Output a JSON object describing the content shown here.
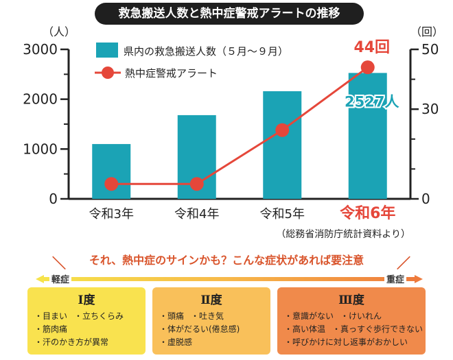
{
  "title": "救急搬送人数と熱中症警戒アラートの推移",
  "chart_data": {
    "type": "bar+line",
    "categories": [
      "令和3年",
      "令和4年",
      "令和5年",
      "令和6年"
    ],
    "highlight_category_index": 3,
    "series": [
      {
        "name": "県内の救急搬送人数（５月～９月）",
        "type": "bar",
        "axis": "left",
        "values": [
          1100,
          1680,
          2160,
          2527
        ]
      },
      {
        "name": "熱中症警戒アラート",
        "type": "line",
        "axis": "right",
        "values": [
          5,
          5,
          23,
          44
        ]
      }
    ],
    "left_axis": {
      "unit": "（人）",
      "ylim": [
        0,
        3000
      ],
      "ticks": [
        "0",
        "1000",
        "2000",
        "3000"
      ]
    },
    "right_axis": {
      "unit": "（回）",
      "ylim": [
        0,
        50
      ],
      "ticks": [
        "0",
        "30",
        "50"
      ]
    },
    "annotations": {
      "bar_callout": "2527人",
      "line_callout": "44回"
    },
    "source": "（総務省消防庁統計資料より）",
    "colors": {
      "bar": "#1ba3b5",
      "line": "#e5473a",
      "highlight": "#e5473a",
      "axis": "#222222"
    }
  },
  "warning": {
    "text": "それ、熱中症のサインかも？こんな症状があれば要注意",
    "left_mark": "＼",
    "right_mark": "／"
  },
  "severity": {
    "mild": "軽症",
    "severe": "重症"
  },
  "levels": [
    {
      "title": "Ⅰ度",
      "color": "#f9e24f",
      "lines": [
        [
          "・目まい",
          "・立ちくらみ"
        ],
        [
          "・筋肉痛"
        ],
        [
          "・汗のかき方が異常"
        ]
      ]
    },
    {
      "title": "Ⅱ度",
      "color": "#f9c05a",
      "lines": [
        [
          "・頭痛",
          "・吐き気"
        ],
        [
          "・体がだるい(倦怠感)"
        ],
        [
          "・虚脱感"
        ]
      ]
    },
    {
      "title": "Ⅲ度",
      "color": "#f08a4b",
      "lines": [
        [
          "・意識がない",
          "・けいれん"
        ],
        [
          "・高い体温",
          "・真っすぐ歩行できない"
        ],
        [
          "・呼びかけに対し返事がおかしい"
        ]
      ]
    }
  ]
}
